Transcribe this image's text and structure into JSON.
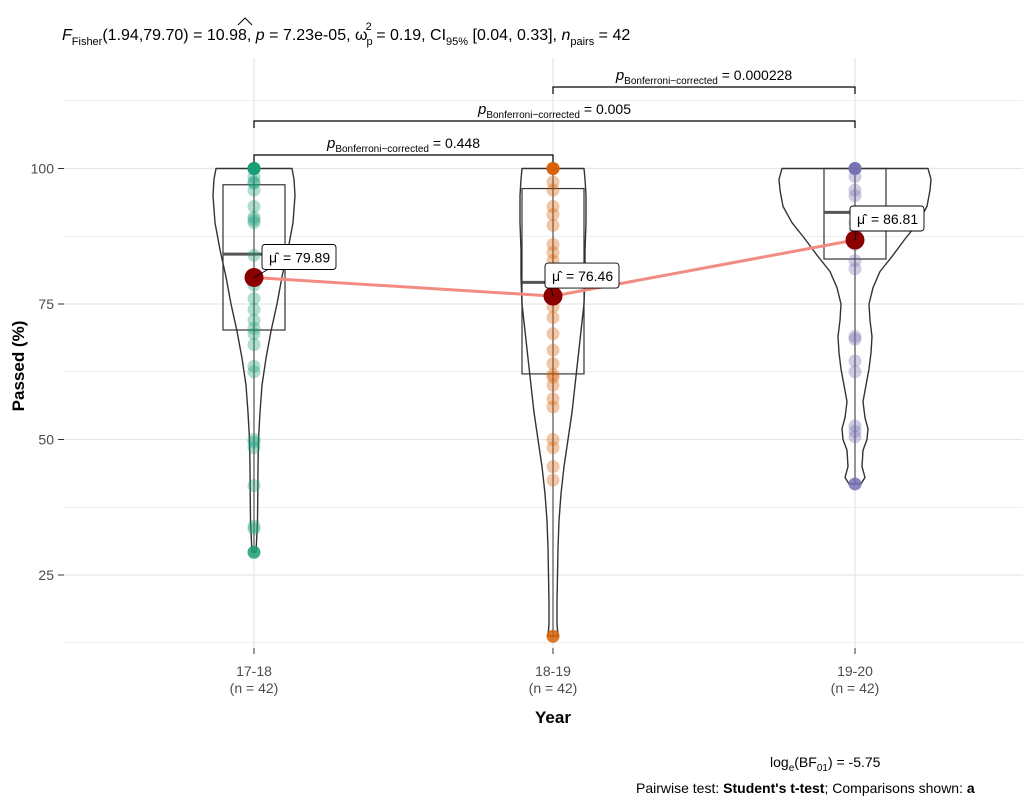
{
  "header": {
    "f_letter": "F",
    "f_sub": "Fisher",
    "f_args": "(1.94,79.70) = 10.98, ",
    "p_letter": "p",
    "p_value": " = 7.23e-05, ",
    "omega": "ω",
    "omega_sup": "2",
    "omega_sub": "p",
    "omega_value": " = 0.19, CI",
    "ci_sub": "95%",
    "ci_value": " [0.04, 0.33], ",
    "n_letter": "n",
    "n_sub": "pairs",
    "n_value": " = 42"
  },
  "footer": {
    "bf_prefix": "log",
    "bf_e": "e",
    "bf_mid": "(BF",
    "bf_sub": "01",
    "bf_value": ") = -5.75",
    "pairwise_prefix": "Pairwise test: ",
    "pairwise_test": "Student's t-test",
    "pairwise_suffix": "; Comparisons shown: ",
    "pairwise_cut": "a"
  },
  "chart_data": {
    "type": "violin",
    "xlabel": "Year",
    "ylabel": "Passed (%)",
    "ylim": [
      11,
      119
    ],
    "yticks": [
      25,
      50,
      75,
      100
    ],
    "grid": true,
    "groups": [
      {
        "name": "17-18",
        "n_label": "(n = 42)",
        "color": "#1b9e77",
        "mean": 79.89,
        "mean_label": "79.89",
        "box": {
          "q1": 70.2,
          "median": 84.2,
          "q3": 97.0,
          "min": 29.2,
          "max": 100
        },
        "violin": [
          [
            29.2,
            2
          ],
          [
            31,
            2.5
          ],
          [
            35,
            3.5
          ],
          [
            40,
            3.8
          ],
          [
            45,
            4
          ],
          [
            50,
            4.5
          ],
          [
            55,
            6
          ],
          [
            60,
            8
          ],
          [
            65,
            12
          ],
          [
            70,
            17
          ],
          [
            75,
            23
          ],
          [
            80,
            28
          ],
          [
            85,
            34
          ],
          [
            90,
            39
          ],
          [
            95,
            41
          ],
          [
            98,
            40
          ],
          [
            100,
            38
          ]
        ],
        "points": [
          100,
          100,
          100,
          98.5,
          97.5,
          97.3,
          96,
          93,
          91,
          90.5,
          90,
          84,
          80,
          78.5,
          76,
          74,
          72,
          70.5,
          69.5,
          67.5,
          63.5,
          62.5,
          50,
          49.5,
          48.5,
          41.5,
          34,
          33.5,
          29.2
        ]
      },
      {
        "name": "18-19",
        "n_label": "(n = 42)",
        "color": "#d95f02",
        "mean": 76.46,
        "mean_label": "76.46",
        "box": {
          "q1": 62.1,
          "median": 79.0,
          "q3": 96.3,
          "min": 13.7,
          "max": 100
        },
        "violin": [
          [
            13.7,
            5
          ],
          [
            16,
            4
          ],
          [
            20,
            4
          ],
          [
            25,
            4.5
          ],
          [
            30,
            5
          ],
          [
            35,
            6
          ],
          [
            40,
            8
          ],
          [
            45,
            11
          ],
          [
            50,
            15
          ],
          [
            55,
            19
          ],
          [
            60,
            22
          ],
          [
            65,
            25
          ],
          [
            70,
            28
          ],
          [
            75,
            31
          ],
          [
            80,
            32
          ],
          [
            85,
            32
          ],
          [
            90,
            33
          ],
          [
            95,
            33
          ],
          [
            98,
            32
          ],
          [
            100,
            31
          ]
        ],
        "points": [
          100,
          100,
          97.5,
          96,
          93,
          91.5,
          89.5,
          86,
          84.5,
          83,
          80,
          78.5,
          76,
          74.5,
          72.5,
          69.5,
          66.5,
          64,
          62,
          61.5,
          60,
          57.5,
          56,
          50,
          48.5,
          45,
          42.5,
          13.7
        ]
      },
      {
        "name": "19-20",
        "n_label": "(n = 42)",
        "color": "#7570b3",
        "mean": 86.81,
        "mean_label": "86.81",
        "box": {
          "q1": 83.3,
          "median": 91.9,
          "q3": 100,
          "min": 41.8,
          "max": 100
        },
        "violin": [
          [
            41.8,
            6
          ],
          [
            43,
            10
          ],
          [
            45,
            7
          ],
          [
            48,
            8
          ],
          [
            50,
            12
          ],
          [
            52,
            13
          ],
          [
            54,
            10
          ],
          [
            57,
            8
          ],
          [
            60,
            11
          ],
          [
            63,
            14
          ],
          [
            66,
            16
          ],
          [
            69,
            17
          ],
          [
            72,
            15
          ],
          [
            75,
            14
          ],
          [
            78,
            18
          ],
          [
            81,
            25
          ],
          [
            84,
            38
          ],
          [
            87,
            50
          ],
          [
            90,
            63
          ],
          [
            93,
            72
          ],
          [
            96,
            75
          ],
          [
            98,
            76
          ],
          [
            100,
            73
          ]
        ],
        "points": [
          100,
          100,
          98.5,
          96,
          95,
          92,
          90,
          88.5,
          86,
          83,
          81.5,
          69,
          68.5,
          64.5,
          62.5,
          52.5,
          51.5,
          50.5,
          41.8
        ]
      }
    ],
    "comparisons": [
      {
        "from": "17-18",
        "to": "18-19",
        "p_label": "p",
        "p_sub": "Bonferroni−corrected",
        "p_value": " = 0.448"
      },
      {
        "from": "17-18",
        "to": "19-20",
        "p_label": "p",
        "p_sub": "Bonferroni−corrected",
        "p_value": " = 0.005"
      },
      {
        "from": "18-19",
        "to": "19-20",
        "p_label": "p",
        "p_sub": "Bonferroni−corrected",
        "p_value": " = 0.000228"
      }
    ],
    "mu_symbol": "μ̂",
    "colors": {
      "mean_line": "#f28b82",
      "mean_point": "#8b0000",
      "grid": "#e6e6e6",
      "outline": "#333333"
    }
  }
}
